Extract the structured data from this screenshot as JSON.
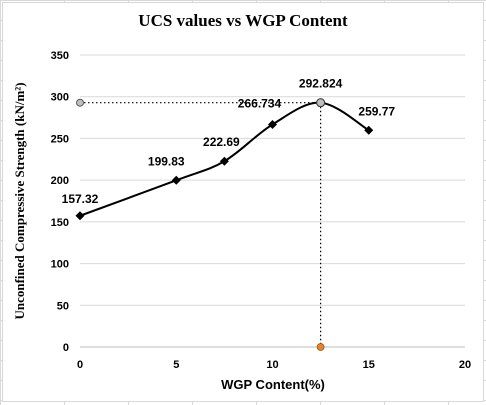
{
  "chart_data": {
    "type": "scatter",
    "title": "UCS values vs WGP Content",
    "xlabel": "WGP Content(%)",
    "ylabel": "Unconfined Compressive Strength (kN/m²)",
    "xlim": [
      0,
      20
    ],
    "ylim": [
      0,
      350
    ],
    "x_ticks": [
      0,
      5,
      10,
      15,
      20
    ],
    "y_ticks": [
      0,
      50,
      100,
      150,
      200,
      250,
      300,
      350
    ],
    "x_tick_labels": [
      "0",
      "5",
      "10",
      "15",
      "20"
    ],
    "y_tick_labels": [
      "0",
      "50",
      "100",
      "150",
      "200",
      "250",
      "300",
      "350"
    ],
    "grid": true,
    "series": [
      {
        "x": [
          0,
          5,
          7.5,
          10,
          12.5,
          15
        ],
        "y": [
          157.32,
          199.83,
          222.69,
          266.734,
          292.824,
          259.77
        ],
        "labels": [
          "157.32",
          "199.83",
          "222.69",
          "266.734",
          "292.824",
          "259.77"
        ],
        "smooth": true,
        "color": "#000000",
        "marker": "diamond"
      }
    ],
    "optimum": {
      "x": 12.5,
      "y": 292.824,
      "y_axis_marker_color": "#bfbfbf",
      "x_axis_marker_color": "#ed7d31",
      "guide_style": "dotted"
    }
  }
}
